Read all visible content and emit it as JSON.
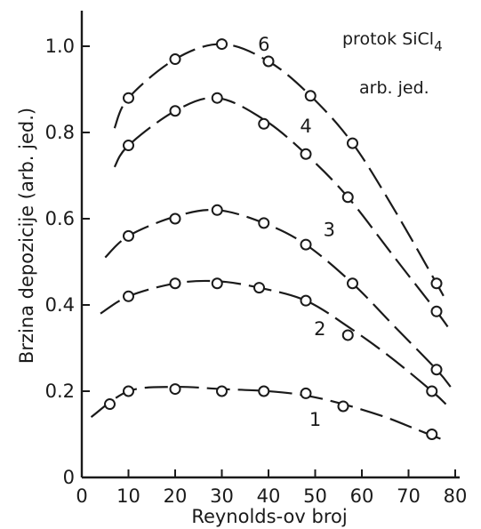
{
  "chart_data": {
    "type": "line",
    "xlabel": "Reynolds-ov broj",
    "ylabel": "Brzina depozicije (arb. jed.)",
    "xlim": [
      0,
      80
    ],
    "ylim": [
      0,
      1.1
    ],
    "x_ticks": [
      "0",
      "10",
      "20",
      "30",
      "40",
      "50",
      "60",
      "70",
      "80"
    ],
    "y_ticks": [
      "0",
      "0.2",
      "0.4",
      "0.6",
      "0.8",
      "1.0"
    ],
    "legend_title": {
      "line1_prefix": "protok SiCl",
      "line1_subscript": "4",
      "line2": "arb. jed."
    },
    "grid": false,
    "series": [
      {
        "name": "1",
        "points": [
          [
            6,
            0.17
          ],
          [
            10,
            0.2
          ],
          [
            20,
            0.205
          ],
          [
            30,
            0.2
          ],
          [
            39,
            0.2
          ],
          [
            48,
            0.195
          ],
          [
            56,
            0.165
          ],
          [
            75,
            0.1
          ]
        ],
        "curve": [
          [
            2,
            0.14
          ],
          [
            10,
            0.2
          ],
          [
            20,
            0.21
          ],
          [
            30,
            0.205
          ],
          [
            40,
            0.2
          ],
          [
            48,
            0.19
          ],
          [
            56,
            0.17
          ],
          [
            65,
            0.14
          ],
          [
            72,
            0.11
          ],
          [
            78,
            0.085
          ]
        ]
      },
      {
        "name": "2",
        "points": [
          [
            10,
            0.42
          ],
          [
            20,
            0.45
          ],
          [
            29,
            0.45
          ],
          [
            38,
            0.44
          ],
          [
            48,
            0.41
          ],
          [
            57,
            0.33
          ],
          [
            75,
            0.2
          ]
        ],
        "curve": [
          [
            4,
            0.38
          ],
          [
            10,
            0.42
          ],
          [
            20,
            0.45
          ],
          [
            29,
            0.455
          ],
          [
            38,
            0.44
          ],
          [
            48,
            0.41
          ],
          [
            57,
            0.35
          ],
          [
            66,
            0.28
          ],
          [
            75,
            0.2
          ],
          [
            78,
            0.17
          ]
        ]
      },
      {
        "name": "3",
        "points": [
          [
            10,
            0.56
          ],
          [
            20,
            0.6
          ],
          [
            29,
            0.62
          ],
          [
            39,
            0.59
          ],
          [
            48,
            0.54
          ],
          [
            58,
            0.45
          ],
          [
            76,
            0.25
          ]
        ],
        "curve": [
          [
            5,
            0.51
          ],
          [
            10,
            0.56
          ],
          [
            20,
            0.605
          ],
          [
            29,
            0.62
          ],
          [
            39,
            0.59
          ],
          [
            48,
            0.54
          ],
          [
            58,
            0.45
          ],
          [
            67,
            0.35
          ],
          [
            76,
            0.25
          ],
          [
            79,
            0.21
          ]
        ]
      },
      {
        "name": "4",
        "points": [
          [
            10,
            0.77
          ],
          [
            20,
            0.85
          ],
          [
            29,
            0.88
          ],
          [
            39,
            0.82
          ],
          [
            48,
            0.75
          ],
          [
            57,
            0.65
          ],
          [
            76,
            0.385
          ]
        ],
        "curve": [
          [
            7,
            0.72
          ],
          [
            10,
            0.77
          ],
          [
            20,
            0.85
          ],
          [
            29,
            0.88
          ],
          [
            39,
            0.83
          ],
          [
            48,
            0.75
          ],
          [
            57,
            0.65
          ],
          [
            67,
            0.51
          ],
          [
            76,
            0.385
          ],
          [
            79,
            0.34
          ]
        ]
      },
      {
        "name": "6",
        "points": [
          [
            10,
            0.88
          ],
          [
            20,
            0.97
          ],
          [
            30,
            1.005
          ],
          [
            40,
            0.965
          ],
          [
            49,
            0.885
          ],
          [
            58,
            0.775
          ],
          [
            76,
            0.45
          ]
        ],
        "curve": [
          [
            7,
            0.81
          ],
          [
            10,
            0.88
          ],
          [
            20,
            0.97
          ],
          [
            30,
            1.005
          ],
          [
            40,
            0.965
          ],
          [
            49,
            0.885
          ],
          [
            58,
            0.775
          ],
          [
            67,
            0.62
          ],
          [
            76,
            0.45
          ],
          [
            78,
            0.41
          ]
        ]
      }
    ],
    "label_positions": {
      "1": [
        50,
        0.12
      ],
      "2": [
        51,
        0.33
      ],
      "3": [
        53,
        0.56
      ],
      "4": [
        48,
        0.8
      ],
      "6": [
        39,
        0.99
      ]
    }
  }
}
